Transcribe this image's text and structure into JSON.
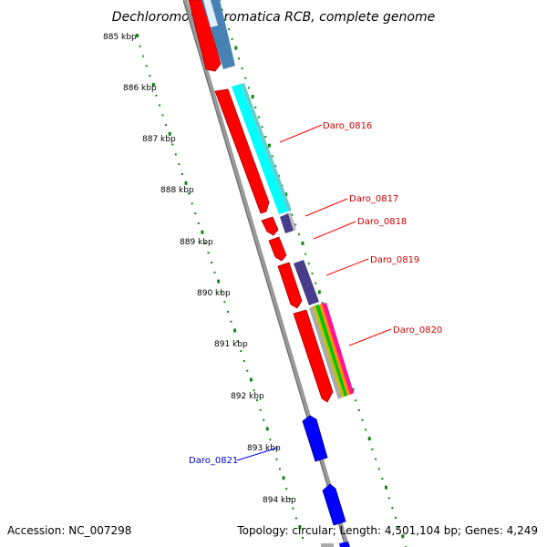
{
  "title": "Dechloromonas aromatica RCB, complete genome",
  "ticks": [
    "885 kbp",
    "886 kbp",
    "887 kbp",
    "888 kbp",
    "889 kbp",
    "890 kbp",
    "891 kbp",
    "892 kbp",
    "893 kbp",
    "894 kbp"
  ],
  "genes": [
    {
      "name": "Daro_0816",
      "color": "#cc0000"
    },
    {
      "name": "Daro_0817",
      "color": "#cc0000"
    },
    {
      "name": "Daro_0818",
      "color": "#cc0000"
    },
    {
      "name": "Daro_0819",
      "color": "#cc0000"
    },
    {
      "name": "Daro_0820",
      "color": "#cc0000"
    },
    {
      "name": "Daro_0821",
      "color": "#0000cc"
    }
  ],
  "footer": {
    "accession": "Accession: NC_007298",
    "topology": "Topology: circular; Length: 4,501,104 bp; Genes: 4,249"
  },
  "colors": {
    "forward_cds": "#ff0000",
    "reverse_cds": "#0000ff",
    "backbone": "#888888",
    "tick_dots": "#118811"
  }
}
